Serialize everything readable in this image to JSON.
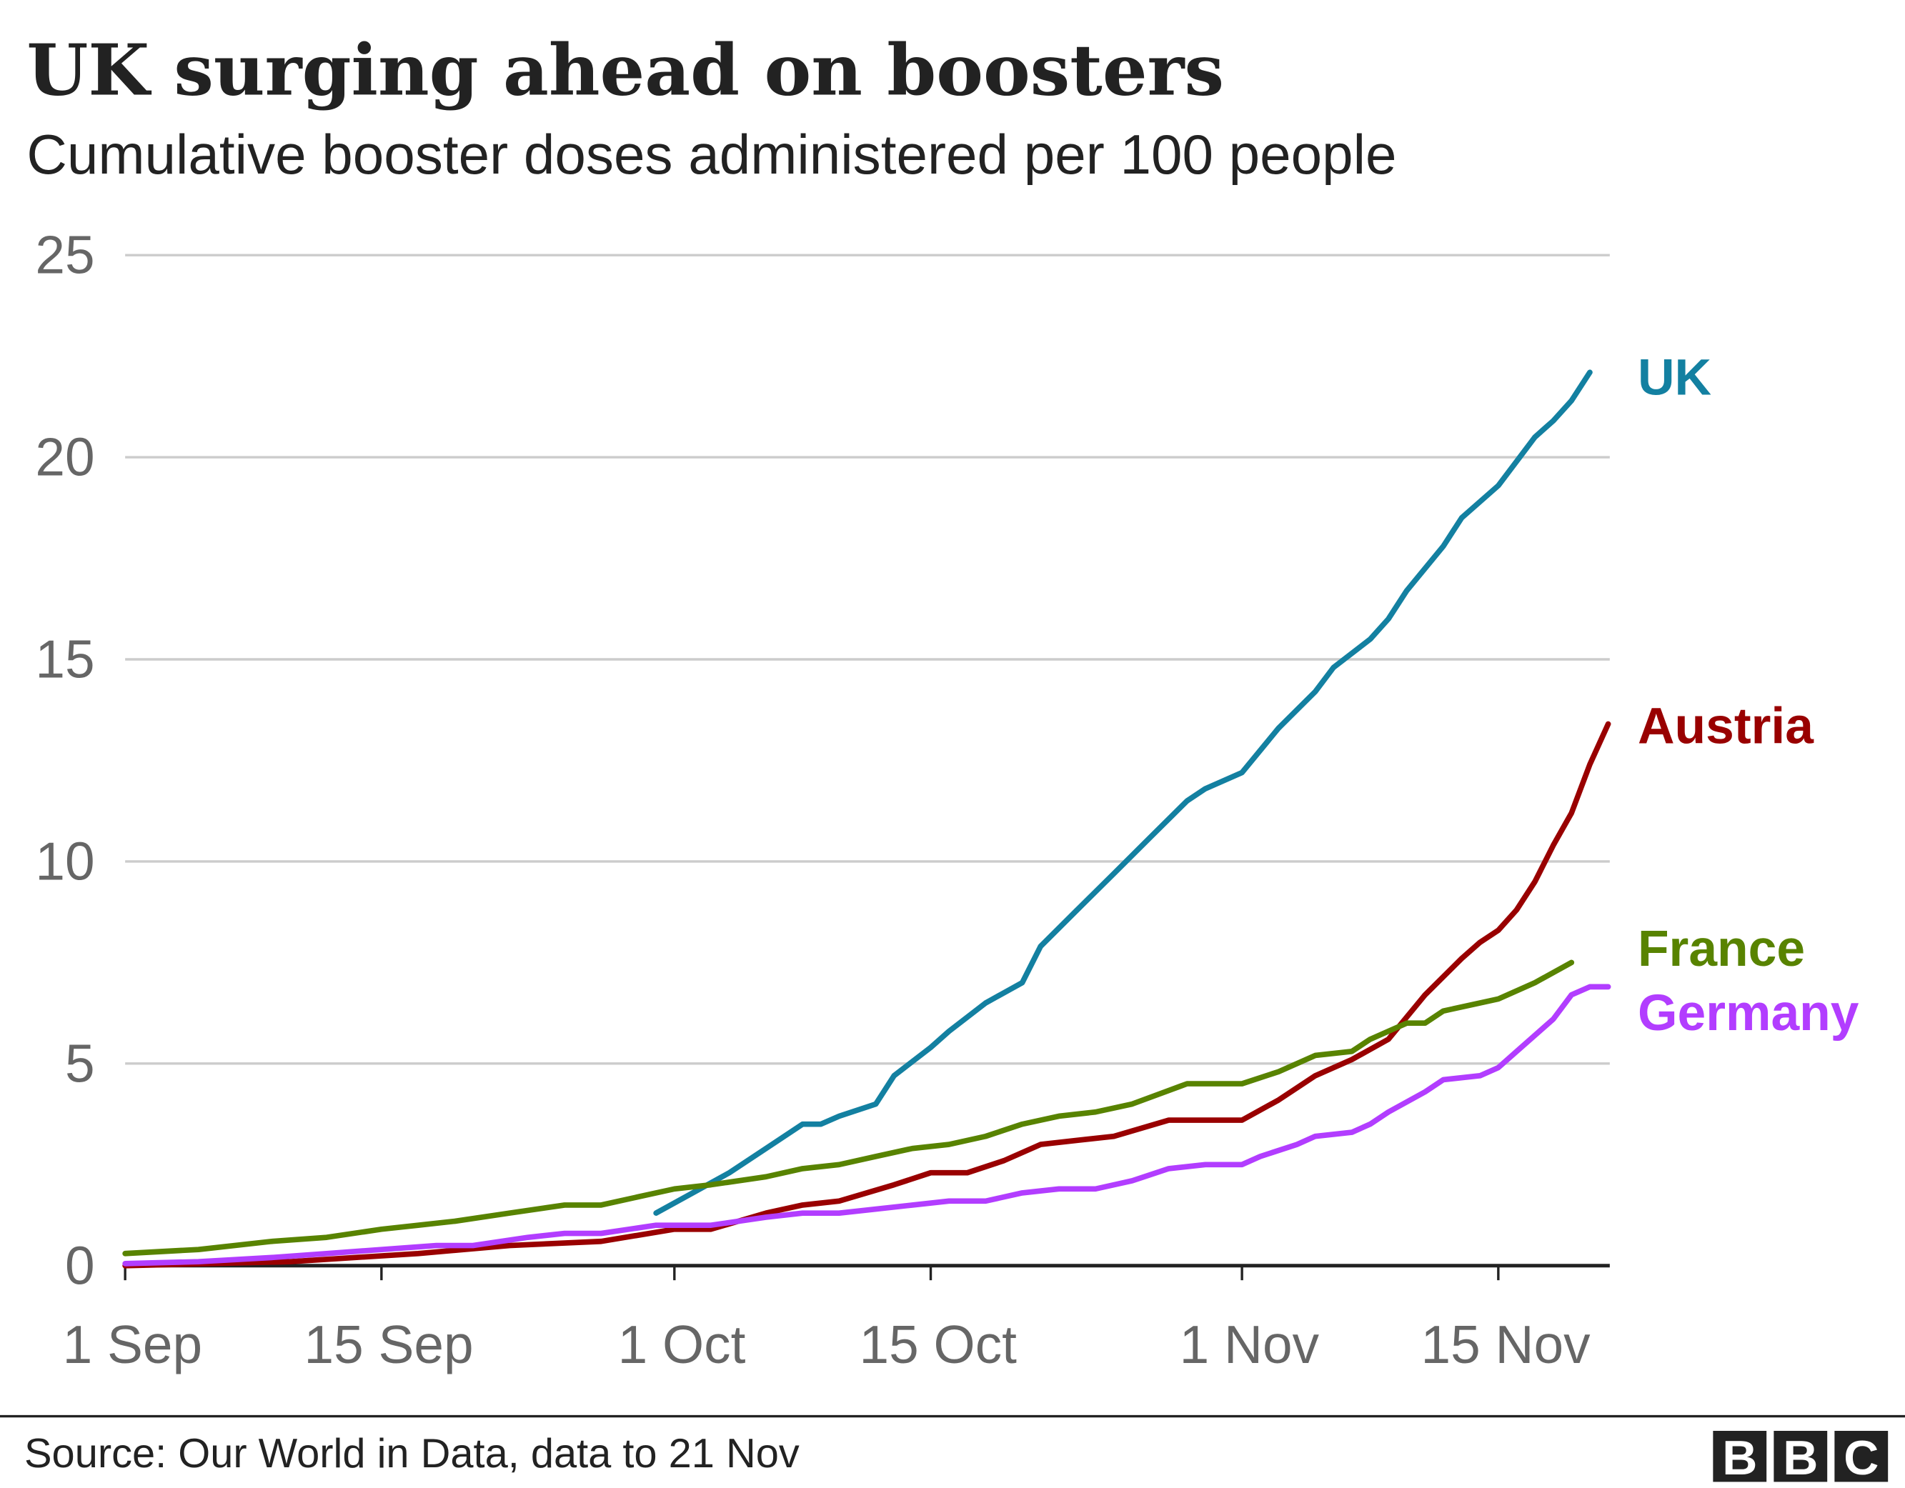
{
  "chart_data": {
    "type": "line",
    "title": "UK surging ahead on boosters",
    "subtitle": "Cumulative booster doses administered per 100 people",
    "xlabel": "",
    "ylabel": "",
    "ylim": [
      0,
      25
    ],
    "xlim": [
      "1 Sep",
      "21 Nov"
    ],
    "grid": true,
    "legend": "direct labels at line ends (right)",
    "y_ticks": [
      "0",
      "5",
      "10",
      "15",
      "20",
      "25"
    ],
    "x_ticks": [
      "1 Sep",
      "15 Sep",
      "1 Oct",
      "15 Oct",
      "1 Nov",
      "15 Nov"
    ],
    "series": [
      {
        "name": "UK",
        "color": "#1380A1",
        "points": [
          [
            "30 Sep",
            1.3
          ],
          [
            "2 Oct",
            1.8
          ],
          [
            "4 Oct",
            2.3
          ],
          [
            "6 Oct",
            2.9
          ],
          [
            "8 Oct",
            3.5
          ],
          [
            "9 Oct",
            3.5
          ],
          [
            "10 Oct",
            3.7
          ],
          [
            "12 Oct",
            4.0
          ],
          [
            "13 Oct",
            4.7
          ],
          [
            "15 Oct",
            5.4
          ],
          [
            "16 Oct",
            5.8
          ],
          [
            "18 Oct",
            6.5
          ],
          [
            "20 Oct",
            7.0
          ],
          [
            "21 Oct",
            7.9
          ],
          [
            "23 Oct",
            8.8
          ],
          [
            "25 Oct",
            9.7
          ],
          [
            "27 Oct",
            10.6
          ],
          [
            "29 Oct",
            11.5
          ],
          [
            "30 Oct",
            11.8
          ],
          [
            "1 Nov",
            12.2
          ],
          [
            "3 Nov",
            13.3
          ],
          [
            "5 Nov",
            14.2
          ],
          [
            "6 Nov",
            14.8
          ],
          [
            "8 Nov",
            15.5
          ],
          [
            "9 Nov",
            16.0
          ],
          [
            "10 Nov",
            16.7
          ],
          [
            "12 Nov",
            17.8
          ],
          [
            "13 Nov",
            18.5
          ],
          [
            "15 Nov",
            19.3
          ],
          [
            "17 Nov",
            20.5
          ],
          [
            "18 Nov",
            20.9
          ],
          [
            "19 Nov",
            21.4
          ],
          [
            "20 Nov",
            22.1
          ]
        ]
      },
      {
        "name": "Austria",
        "color": "#990000",
        "points": [
          [
            "1 Sep",
            0.0
          ],
          [
            "10 Sep",
            0.1
          ],
          [
            "17 Sep",
            0.3
          ],
          [
            "22 Sep",
            0.5
          ],
          [
            "27 Sep",
            0.6
          ],
          [
            "1 Oct",
            0.9
          ],
          [
            "3 Oct",
            0.9
          ],
          [
            "6 Oct",
            1.3
          ],
          [
            "8 Oct",
            1.5
          ],
          [
            "10 Oct",
            1.6
          ],
          [
            "13 Oct",
            2.0
          ],
          [
            "15 Oct",
            2.3
          ],
          [
            "17 Oct",
            2.3
          ],
          [
            "19 Oct",
            2.6
          ],
          [
            "21 Oct",
            3.0
          ],
          [
            "23 Oct",
            3.1
          ],
          [
            "25 Oct",
            3.2
          ],
          [
            "28 Oct",
            3.6
          ],
          [
            "1 Nov",
            3.6
          ],
          [
            "3 Nov",
            4.1
          ],
          [
            "5 Nov",
            4.7
          ],
          [
            "7 Nov",
            5.1
          ],
          [
            "9 Nov",
            5.6
          ],
          [
            "11 Nov",
            6.7
          ],
          [
            "13 Nov",
            7.6
          ],
          [
            "14 Nov",
            8.0
          ],
          [
            "15 Nov",
            8.3
          ],
          [
            "16 Nov",
            8.8
          ],
          [
            "17 Nov",
            9.5
          ],
          [
            "18 Nov",
            10.4
          ],
          [
            "19 Nov",
            11.2
          ],
          [
            "20 Nov",
            12.4
          ],
          [
            "21 Nov",
            13.4
          ]
        ]
      },
      {
        "name": "France",
        "color": "#588300",
        "points": [
          [
            "1 Sep",
            0.3
          ],
          [
            "5 Sep",
            0.4
          ],
          [
            "9 Sep",
            0.6
          ],
          [
            "12 Sep",
            0.7
          ],
          [
            "15 Sep",
            0.9
          ],
          [
            "17 Sep",
            1.0
          ],
          [
            "19 Sep",
            1.1
          ],
          [
            "22 Sep",
            1.3
          ],
          [
            "25 Sep",
            1.5
          ],
          [
            "27 Sep",
            1.5
          ],
          [
            "29 Sep",
            1.7
          ],
          [
            "1 Oct",
            1.9
          ],
          [
            "3 Oct",
            2.0
          ],
          [
            "6 Oct",
            2.2
          ],
          [
            "8 Oct",
            2.4
          ],
          [
            "10 Oct",
            2.5
          ],
          [
            "12 Oct",
            2.7
          ],
          [
            "14 Oct",
            2.9
          ],
          [
            "16 Oct",
            3.0
          ],
          [
            "18 Oct",
            3.2
          ],
          [
            "20 Oct",
            3.5
          ],
          [
            "22 Oct",
            3.7
          ],
          [
            "24 Oct",
            3.8
          ],
          [
            "26 Oct",
            4.0
          ],
          [
            "29 Oct",
            4.5
          ],
          [
            "1 Nov",
            4.5
          ],
          [
            "3 Nov",
            4.8
          ],
          [
            "5 Nov",
            5.2
          ],
          [
            "7 Nov",
            5.3
          ],
          [
            "8 Nov",
            5.6
          ],
          [
            "10 Nov",
            6.0
          ],
          [
            "11 Nov",
            6.0
          ],
          [
            "12 Nov",
            6.3
          ],
          [
            "14 Nov",
            6.5
          ],
          [
            "15 Nov",
            6.6
          ],
          [
            "17 Nov",
            7.0
          ],
          [
            "19 Nov",
            7.5
          ]
        ]
      },
      {
        "name": "Germany",
        "color": "#B23DFF",
        "points": [
          [
            "1 Sep",
            0.05
          ],
          [
            "5 Sep",
            0.1
          ],
          [
            "9 Sep",
            0.2
          ],
          [
            "12 Sep",
            0.3
          ],
          [
            "15 Sep",
            0.4
          ],
          [
            "18 Sep",
            0.5
          ],
          [
            "20 Sep",
            0.5
          ],
          [
            "23 Sep",
            0.7
          ],
          [
            "25 Sep",
            0.8
          ],
          [
            "27 Sep",
            0.8
          ],
          [
            "30 Sep",
            1.0
          ],
          [
            "3 Oct",
            1.0
          ],
          [
            "6 Oct",
            1.2
          ],
          [
            "8 Oct",
            1.3
          ],
          [
            "10 Oct",
            1.3
          ],
          [
            "12 Oct",
            1.4
          ],
          [
            "14 Oct",
            1.5
          ],
          [
            "16 Oct",
            1.6
          ],
          [
            "18 Oct",
            1.6
          ],
          [
            "20 Oct",
            1.8
          ],
          [
            "22 Oct",
            1.9
          ],
          [
            "24 Oct",
            1.9
          ],
          [
            "26 Oct",
            2.1
          ],
          [
            "28 Oct",
            2.4
          ],
          [
            "30 Oct",
            2.5
          ],
          [
            "1 Nov",
            2.5
          ],
          [
            "2 Nov",
            2.7
          ],
          [
            "4 Nov",
            3.0
          ],
          [
            "5 Nov",
            3.2
          ],
          [
            "7 Nov",
            3.3
          ],
          [
            "8 Nov",
            3.5
          ],
          [
            "9 Nov",
            3.8
          ],
          [
            "11 Nov",
            4.3
          ],
          [
            "12 Nov",
            4.6
          ],
          [
            "14 Nov",
            4.7
          ],
          [
            "15 Nov",
            4.9
          ],
          [
            "16 Nov",
            5.3
          ],
          [
            "18 Nov",
            6.1
          ],
          [
            "19 Nov",
            6.7
          ],
          [
            "20 Nov",
            6.9
          ],
          [
            "21 Nov",
            6.9
          ]
        ]
      }
    ]
  },
  "footer": {
    "source": "Source: Our World in Data, data to 21 Nov",
    "logo": "BBC"
  }
}
